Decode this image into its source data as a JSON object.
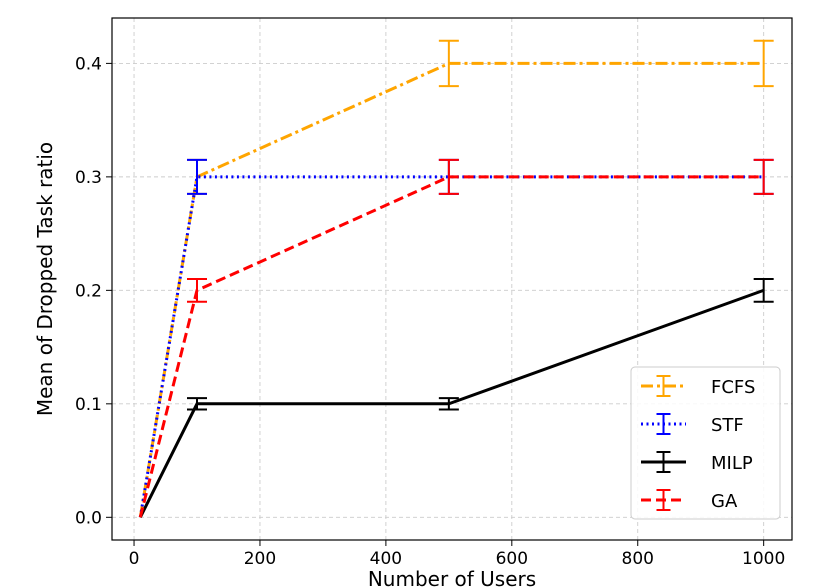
{
  "chart_data": {
    "type": "line",
    "title": "",
    "xlabel": "Number of Users",
    "ylabel": "Mean of Dropped Task ratio",
    "xlim": [
      -35,
      1045
    ],
    "ylim": [
      -0.02,
      0.44
    ],
    "xticks": [
      0,
      200,
      400,
      600,
      800,
      1000
    ],
    "yticks": [
      0.0,
      0.1,
      0.2,
      0.3,
      0.4
    ],
    "x_tick_labels": [
      "0",
      "200",
      "400",
      "600",
      "800",
      "1000"
    ],
    "y_tick_labels": [
      "0.0",
      "0.1",
      "0.2",
      "0.3",
      "0.4"
    ],
    "grid": true,
    "legend_position": "bottom-right",
    "x": [
      10,
      100,
      500,
      1000
    ],
    "series": [
      {
        "name": "FCFS",
        "values": [
          0.0,
          0.3,
          0.4,
          0.4
        ],
        "errors": [
          0.0,
          0.015,
          0.02,
          0.02
        ],
        "color": "#FFA500",
        "dash": "dashdot"
      },
      {
        "name": "STF",
        "values": [
          0.0,
          0.3,
          0.3,
          0.3
        ],
        "errors": [
          0.0,
          0.015,
          0.015,
          0.015
        ],
        "color": "#0000FF",
        "dash": "dotted"
      },
      {
        "name": "MILP",
        "values": [
          0.0,
          0.1,
          0.1,
          0.2
        ],
        "errors": [
          0.0,
          0.005,
          0.005,
          0.01
        ],
        "color": "#000000",
        "dash": "solid"
      },
      {
        "name": "GA",
        "values": [
          0.0,
          0.2,
          0.3,
          0.3
        ],
        "errors": [
          0.0,
          0.01,
          0.015,
          0.015
        ],
        "color": "#FF0000",
        "dash": "dashed"
      }
    ]
  }
}
